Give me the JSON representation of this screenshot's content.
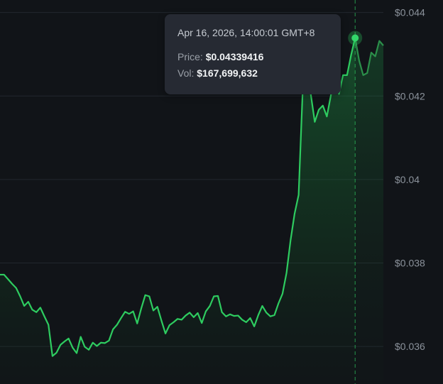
{
  "chart_data": {
    "type": "area",
    "y_axis": {
      "position": "right",
      "ylim": [
        0.0351,
        0.0443
      ],
      "ticks": [
        0.036,
        0.038,
        0.04,
        0.042,
        0.044
      ],
      "tick_labels": [
        "$0.036",
        "$0.038",
        "$0.04",
        "$0.042",
        "$0.044"
      ],
      "grid": true
    },
    "series": [
      {
        "color": "#2ecc60",
        "y": [
          0.03772,
          0.03772,
          0.03761,
          0.0375,
          0.0374,
          0.0372,
          0.03697,
          0.03707,
          0.03688,
          0.03682,
          0.03693,
          0.03672,
          0.03652,
          0.03577,
          0.03585,
          0.03604,
          0.03612,
          0.03619,
          0.03597,
          0.03584,
          0.03623,
          0.03599,
          0.03592,
          0.03609,
          0.03601,
          0.03609,
          0.03608,
          0.03614,
          0.03641,
          0.03652,
          0.03668,
          0.03683,
          0.03678,
          0.03684,
          0.03655,
          0.03691,
          0.03723,
          0.0372,
          0.03686,
          0.03695,
          0.03662,
          0.03631,
          0.03651,
          0.03658,
          0.03666,
          0.03664,
          0.03674,
          0.03681,
          0.0367,
          0.0368,
          0.03656,
          0.03684,
          0.03697,
          0.0372,
          0.03721,
          0.03682,
          0.03672,
          0.03677,
          0.03673,
          0.03674,
          0.03664,
          0.03658,
          0.03668,
          0.03648,
          0.03675,
          0.03697,
          0.03681,
          0.03672,
          0.03675,
          0.03703,
          0.03726,
          0.03776,
          0.03854,
          0.03918,
          0.03963,
          0.04212,
          0.04318,
          0.04205,
          0.04138,
          0.04167,
          0.04177,
          0.04151,
          0.04202,
          0.04262,
          0.04205,
          0.0425,
          0.0425,
          0.04298,
          0.04339,
          0.04285,
          0.0425,
          0.04255,
          0.04304,
          0.04295,
          0.04332,
          0.04321
        ],
        "highlight_index": 88
      }
    ],
    "tooltip": {
      "time": "Apr 16, 2026, 14:00:01 GMT+8",
      "price_label": "Price:",
      "price_value": "$0.04339416",
      "vol_label": "Vol:",
      "vol_value": "$167,699,632"
    }
  }
}
